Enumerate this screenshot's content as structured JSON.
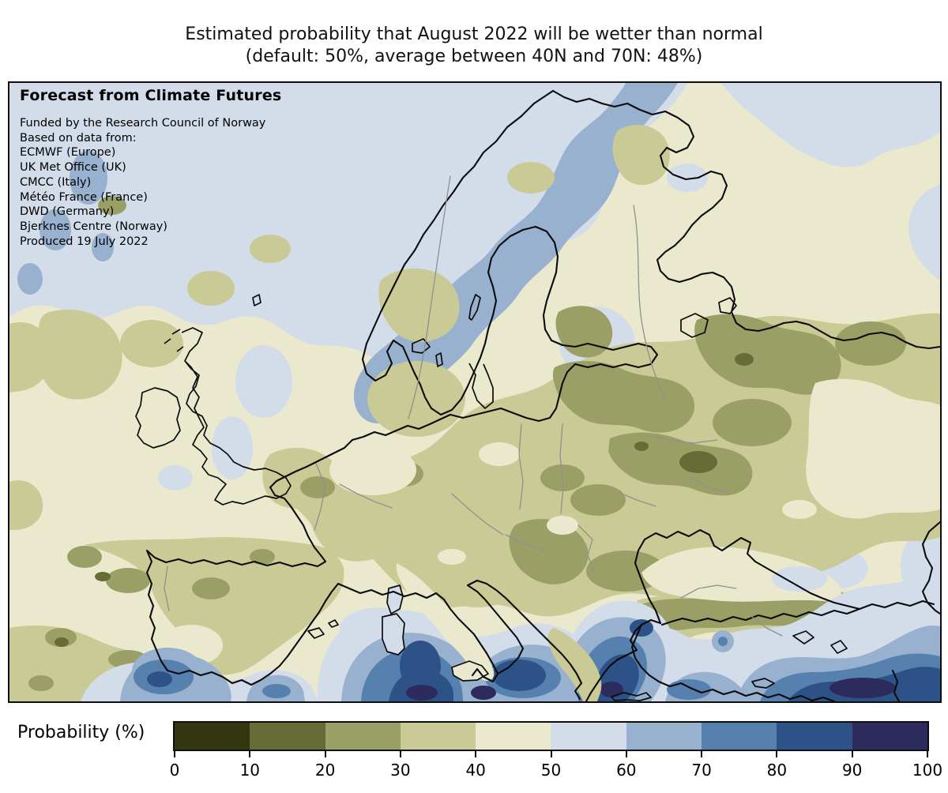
{
  "title": {
    "line1": "Estimated probability that August 2022 will be wetter than normal",
    "line2": "(default: 50%, average between 40N and 70N: 48%)"
  },
  "map": {
    "heading": "Forecast from Climate Futures",
    "credits": [
      "Funded by the Research Council of Norway",
      "Based on data from:",
      "ECMWF (Europe)",
      "UK Met Office (UK)",
      "CMCC (Italy)",
      "Météo France (France)",
      "DWD (Germany)",
      "Bjerknes Centre (Norway)",
      "Produced 19 July 2022"
    ]
  },
  "legend": {
    "label": "Probability (%)",
    "ticks": [
      "0",
      "10",
      "20",
      "30",
      "40",
      "50",
      "60",
      "70",
      "80",
      "90",
      "100"
    ],
    "colors": [
      "#343611",
      "#676b36",
      "#9aa065",
      "#c9ca95",
      "#eae9ce",
      "#d3dce9",
      "#97b1cf",
      "#5681ae",
      "#2c5287",
      "#2d2b5e"
    ]
  },
  "chart_data": {
    "type": "heatmap",
    "title": "Estimated probability that August 2022 will be wetter than normal",
    "subtitle": "(default: 50%, average between 40N and 70N: 48%)",
    "region": "Europe and the Mediterranean",
    "variable": "Probability (%) that August 2022 is wetter than normal",
    "reference_values": {
      "default_percent": 50,
      "average_40N_to_70N_percent": 48
    },
    "colorbar": {
      "label": "Probability (%)",
      "range": [
        0,
        100
      ],
      "bin_width": 10,
      "ticks": [
        0,
        10,
        20,
        30,
        40,
        50,
        60,
        70,
        80,
        90,
        100
      ],
      "colors": [
        "#343611",
        "#676b36",
        "#9aa065",
        "#c9ca95",
        "#eae9ce",
        "#d3dce9",
        "#97b1cf",
        "#5681ae",
        "#2c5287",
        "#2d2b5e"
      ],
      "orientation": "horizontal"
    },
    "readings": [
      {
        "area": "Central and eastern Europe (Germany, Poland, Ukraine, western Russia)",
        "probability_percent": "20-40"
      },
      {
        "area": "Localized spots near Ukraine / Belarus / Russia border",
        "probability_percent": "10-20"
      },
      {
        "area": "France, Iberia interior, Balkans, inland Turkey",
        "probability_percent": "20-40"
      },
      {
        "area": "British Isles and most Atlantic areas",
        "probability_percent": "40-50"
      },
      {
        "area": "Norwegian Sea, Norway coast and far north",
        "probability_percent": "50-70"
      },
      {
        "area": "Gulf of Cadiz and Alboran Sea",
        "probability_percent": "60-80"
      },
      {
        "area": "Central Mediterranean south of Sicily and Ionian Sea",
        "probability_percent": "70-100"
      },
      {
        "area": "Aegean Sea and southwestern Turkey",
        "probability_percent": "70-100"
      },
      {
        "area": "Southeastern Turkey and Levant (bottom-right corner)",
        "probability_percent": "80-100"
      }
    ]
  }
}
